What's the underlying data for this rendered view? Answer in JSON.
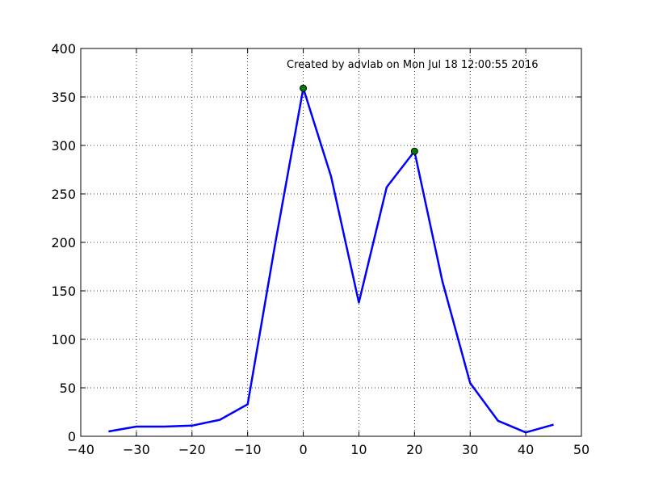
{
  "chart_data": {
    "type": "line",
    "title": "",
    "xlabel": "",
    "ylabel": "",
    "xlim": [
      -40,
      50
    ],
    "ylim": [
      0,
      400
    ],
    "grid": true,
    "x_ticks": [
      -40,
      -30,
      -20,
      -10,
      0,
      10,
      20,
      30,
      40,
      50
    ],
    "y_ticks": [
      0,
      50,
      100,
      150,
      200,
      250,
      300,
      350,
      400
    ],
    "x_tick_labels": [
      "−40",
      "−30",
      "−20",
      "−10",
      "0",
      "10",
      "20",
      "30",
      "40",
      "50"
    ],
    "y_tick_labels": [
      "0",
      "50",
      "100",
      "150",
      "200",
      "250",
      "300",
      "350",
      "400"
    ],
    "series": [
      {
        "color": "#0000ff",
        "x": [
          -35,
          -30,
          -25,
          -20,
          -15,
          -10,
          -5,
          0,
          5,
          10,
          15,
          20,
          25,
          30,
          35,
          40,
          45
        ],
        "y": [
          5,
          10,
          10,
          11,
          17,
          33,
          200,
          359,
          268,
          138,
          257,
          294,
          160,
          55,
          16,
          4,
          12
        ]
      }
    ],
    "markers": {
      "color": "#008000",
      "points": [
        {
          "x": 0,
          "y": 359
        },
        {
          "x": 20,
          "y": 294
        }
      ]
    },
    "annotation": "Created by advlab on Mon Jul 18 12:00:55 2016"
  }
}
